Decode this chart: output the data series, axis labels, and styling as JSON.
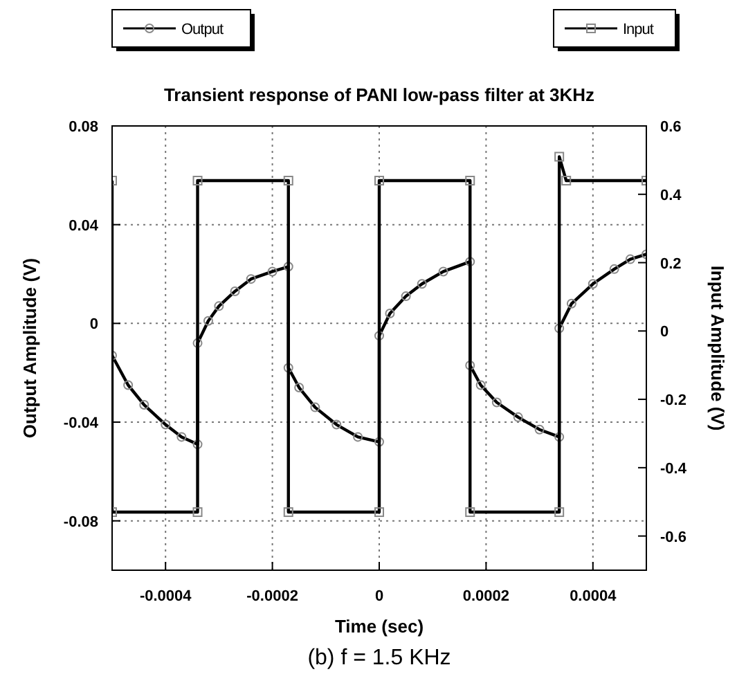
{
  "chart_data": {
    "type": "line",
    "title": "Transient response of PANI low-pass filter at 3KHz",
    "xlabel": "Time (sec)",
    "ylabel": "Output Amplitude (V)",
    "y2label": "Input Amplitude (V)",
    "annotations": [
      "(b) f = 1.5 KHz"
    ],
    "xlim": [
      -0.0005,
      0.0005
    ],
    "xticks": [
      -0.0004,
      -0.0002,
      0,
      0.0002,
      0.0004
    ],
    "ylim": [
      -0.1,
      0.08
    ],
    "yticks": [
      -0.08,
      -0.04,
      0,
      0.04,
      0.08
    ],
    "y2lim": [
      -0.7,
      0.6
    ],
    "y2ticks": [
      -0.6,
      -0.4,
      -0.2,
      0,
      0.2,
      0.4,
      0.6
    ],
    "grid": true,
    "legend": "top",
    "line_style": "solid",
    "series": [
      {
        "name": "Output",
        "color": "#000000",
        "marker": "circle",
        "x": [
          -0.0005,
          -0.00047,
          -0.00044,
          -0.0004,
          -0.00037,
          -0.00034,
          -0.00034,
          -0.00032,
          -0.0003,
          -0.00027,
          -0.00024,
          -0.0002,
          -0.00017,
          -0.00017,
          -0.00015,
          -0.00012,
          -8e-05,
          -4e-05,
          0,
          0,
          2e-05,
          5e-05,
          8e-05,
          0.00012,
          0.00017,
          0.00017,
          0.00019,
          0.00022,
          0.00026,
          0.0003,
          0.000337,
          0.000337,
          0.00036,
          0.0004,
          0.00044,
          0.00047,
          0.0005
        ],
        "values": [
          -0.013,
          -0.025,
          -0.033,
          -0.041,
          -0.046,
          -0.049,
          -0.008,
          0.001,
          0.007,
          0.013,
          0.018,
          0.021,
          0.023,
          -0.018,
          -0.026,
          -0.034,
          -0.041,
          -0.046,
          -0.048,
          -0.005,
          0.004,
          0.011,
          0.016,
          0.021,
          0.025,
          -0.017,
          -0.025,
          -0.032,
          -0.038,
          -0.043,
          -0.046,
          -0.002,
          0.008,
          0.016,
          0.022,
          0.026,
          0.028
        ]
      },
      {
        "name": "Input",
        "color": "#000000",
        "marker": "square",
        "axis": "y2",
        "x": [
          -0.0005,
          -0.0005,
          -0.00034,
          -0.00034,
          -0.00017,
          -0.00017,
          0,
          0,
          0.00017,
          0.00017,
          0.000337,
          0.000337,
          0.00035,
          0.0005
        ],
        "values": [
          0.44,
          -0.53,
          -0.53,
          0.44,
          0.44,
          -0.53,
          -0.53,
          0.44,
          0.44,
          -0.53,
          -0.53,
          0.51,
          0.44,
          0.44
        ]
      }
    ]
  }
}
